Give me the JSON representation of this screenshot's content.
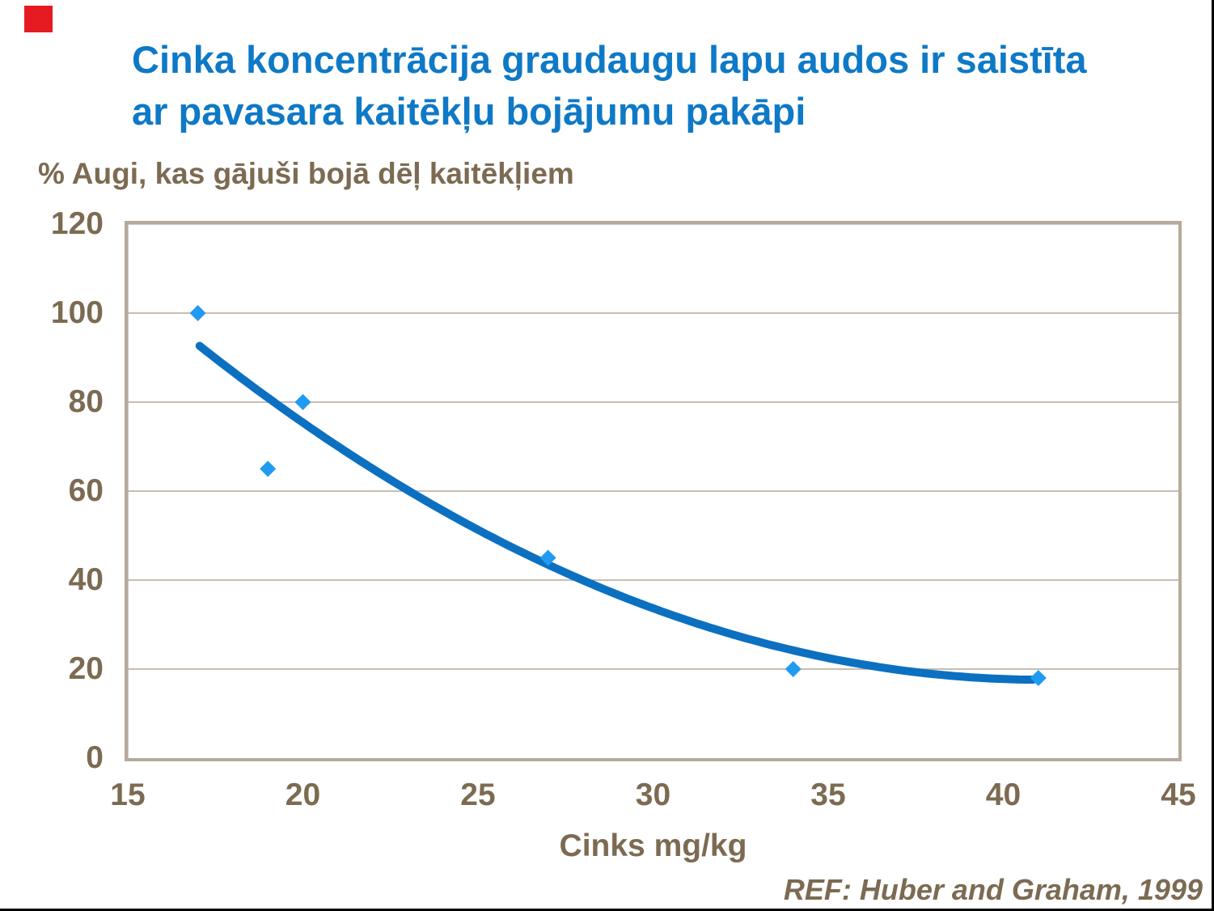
{
  "slide": {
    "title_lines": [
      "Cinka koncentrācija graudaugu lapu audos ir saistīta",
      "ar pavasara kaitēkļu bojājumu pakāpi"
    ],
    "reference": "REF: Huber and Graham, 1999"
  },
  "chart_data": {
    "type": "scatter",
    "title": "Cinka koncentrācija graudaugu lapu audos ir saistīta ar pavasara kaitēkļu bojājumu pakāpi",
    "xlabel": "Cinks mg/kg",
    "ylabel": "% Augi, kas gājuši bojā dēļ kaitēkļiem",
    "xlim": [
      15,
      45
    ],
    "ylim": [
      0,
      120
    ],
    "x_ticks": [
      15,
      20,
      25,
      30,
      35,
      40,
      45
    ],
    "y_ticks": [
      0,
      20,
      40,
      60,
      80,
      100,
      120
    ],
    "grid": "horizontal",
    "legend": "none",
    "marker": "diamond",
    "points": [
      [
        17,
        100
      ],
      [
        19,
        65
      ],
      [
        20,
        80
      ],
      [
        27,
        45
      ],
      [
        34,
        20
      ],
      [
        41,
        18
      ]
    ],
    "trendline": {
      "type": "quadratic",
      "a": 0.1292,
      "vertex_x": 41.15,
      "vertex_y": 17.6,
      "x_start": 17.05,
      "x_end": 41.0
    }
  },
  "colors": {
    "title": "#0e79c6",
    "axis_text": "#7c6b52",
    "grid": "#b6a999",
    "frame": "#b7aa9b",
    "marker": "#219bf2",
    "trend": "#0c70c1",
    "accent_square": "#e61b22",
    "page_border": "#000000"
  }
}
